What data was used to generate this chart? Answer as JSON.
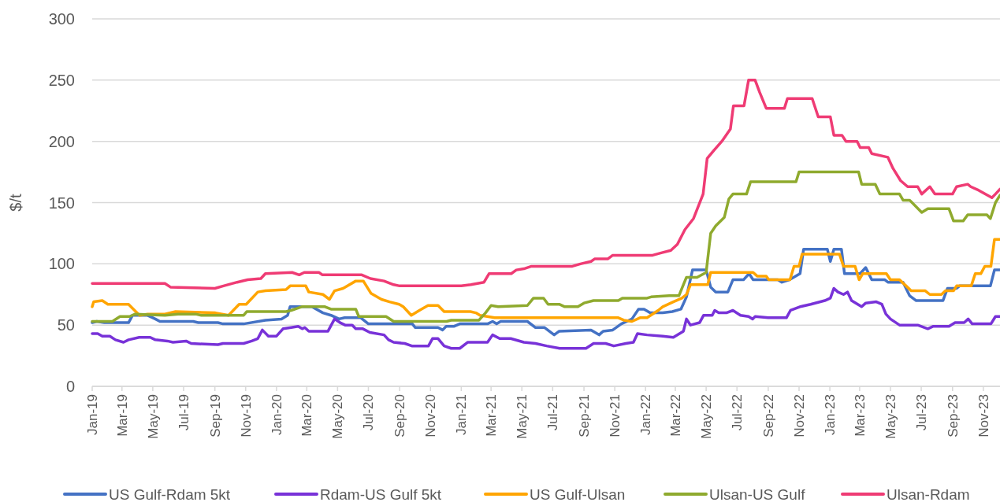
{
  "chart_data": {
    "type": "line",
    "ylabel": "$/t",
    "ylim": [
      0,
      300
    ],
    "yticks": [
      0,
      50,
      100,
      150,
      200,
      250,
      300
    ],
    "xlim": [
      "2019-01-01",
      "2023-12-04"
    ],
    "xticks": [
      {
        "value": "2019-01",
        "label": "Jan-19"
      },
      {
        "value": "2019-03",
        "label": "Mar-19"
      },
      {
        "value": "2019-05",
        "label": "May-19"
      },
      {
        "value": "2019-07",
        "label": "Jul-19"
      },
      {
        "value": "2019-09",
        "label": "Sep-19"
      },
      {
        "value": "2019-11",
        "label": "Nov-19"
      },
      {
        "value": "2020-01",
        "label": "Jan-20"
      },
      {
        "value": "2020-03",
        "label": "Mar-20"
      },
      {
        "value": "2020-05",
        "label": "May-20"
      },
      {
        "value": "2020-07",
        "label": "Jul-20"
      },
      {
        "value": "2020-09",
        "label": "Sep-20"
      },
      {
        "value": "2020-11",
        "label": "Nov-20"
      },
      {
        "value": "2021-01",
        "label": "Jan-21"
      },
      {
        "value": "2021-03",
        "label": "Mar-21"
      },
      {
        "value": "2021-05",
        "label": "May-21"
      },
      {
        "value": "2021-07",
        "label": "Jul-21"
      },
      {
        "value": "2021-09",
        "label": "Sep-21"
      },
      {
        "value": "2021-11",
        "label": "Nov-21"
      },
      {
        "value": "2022-01",
        "label": "Jan-22"
      },
      {
        "value": "2022-03",
        "label": "Mar-22"
      },
      {
        "value": "2022-05",
        "label": "May-22"
      },
      {
        "value": "2022-07",
        "label": "Jul-22"
      },
      {
        "value": "2022-09",
        "label": "Sep-22"
      },
      {
        "value": "2022-11",
        "label": "Nov-22"
      },
      {
        "value": "2023-01",
        "label": "Jan-23"
      },
      {
        "value": "2023-03",
        "label": "Mar-23"
      },
      {
        "value": "2023-05",
        "label": "May-23"
      },
      {
        "value": "2023-07",
        "label": "Jul-23"
      },
      {
        "value": "2023-09",
        "label": "Sep-23"
      },
      {
        "value": "2023-11",
        "label": "Nov-23"
      }
    ],
    "grid": "y",
    "legend": "bottom",
    "marker": "none",
    "line_style": "solid",
    "series": [
      {
        "name": "US Gulf-Rdam 5kt",
        "color": "#4472c4",
        "x": [
          "2019-01-01",
          "2019-01-10",
          "2019-01-25",
          "2019-03-14",
          "2019-03-22",
          "2019-04-20",
          "2019-05-06",
          "2019-05-15",
          "2019-07-20",
          "2019-07-30",
          "2019-09-07",
          "2019-09-17",
          "2019-10-28",
          "2019-12-10",
          "2020-01-11",
          "2020-01-23",
          "2020-01-28",
          "2020-03-11",
          "2020-04-02",
          "2020-04-18",
          "2020-05-04",
          "2020-05-15",
          "2020-06-16",
          "2020-07-01",
          "2020-09-26",
          "2020-10-02",
          "2020-11-16",
          "2020-11-25",
          "2020-12-02",
          "2020-12-18",
          "2020-12-29",
          "2021-02-22",
          "2021-03-04",
          "2021-03-12",
          "2021-03-20",
          "2021-05-12",
          "2021-05-28",
          "2021-06-15",
          "2021-07-04",
          "2021-07-14",
          "2021-09-15",
          "2021-10-01",
          "2021-10-09",
          "2021-10-28",
          "2021-11-14",
          "2021-12-05",
          "2021-12-18",
          "2021-12-29",
          "2022-01-10",
          "2022-02-04",
          "2022-02-23",
          "2022-03-12",
          "2022-03-23",
          "2022-04-04",
          "2022-05-01",
          "2022-05-10",
          "2022-05-20",
          "2022-06-13",
          "2022-06-23",
          "2022-07-14",
          "2022-07-25",
          "2022-08-02",
          "2022-09-20",
          "2022-09-28",
          "2022-10-13",
          "2022-11-03",
          "2022-11-10",
          "2022-12-27",
          "2023-01-02",
          "2023-01-09",
          "2023-01-24",
          "2023-01-30",
          "2023-03-02",
          "2023-03-13",
          "2023-03-19",
          "2023-03-25",
          "2023-04-20",
          "2023-04-26",
          "2023-05-26",
          "2023-06-08",
          "2023-06-21",
          "2023-08-13",
          "2023-08-22",
          "2023-09-09",
          "2023-09-15",
          "2023-11-15",
          "2023-11-23",
          "2023-12-04"
        ],
        "values": [
          52,
          53,
          52,
          52,
          58,
          58,
          55,
          53,
          53,
          52,
          52,
          51,
          51,
          54,
          55,
          58,
          65,
          65,
          60,
          58,
          55,
          56,
          56,
          51,
          51,
          48,
          48,
          46,
          49,
          49,
          51,
          51,
          53,
          51,
          53,
          53,
          48,
          48,
          42,
          45,
          46,
          42,
          45,
          46,
          51,
          55,
          63,
          63,
          60,
          60,
          61,
          63,
          73,
          95,
          95,
          81,
          77,
          77,
          87,
          87,
          92,
          87,
          87,
          85,
          87,
          92,
          112,
          112,
          102,
          112,
          112,
          92,
          92,
          97,
          92,
          87,
          87,
          85,
          85,
          74,
          70,
          70,
          80,
          80,
          82,
          82,
          95,
          95
        ]
      },
      {
        "name": "Rdam-US Gulf 5kt",
        "color": "#7832d8",
        "x": [
          "2019-01-01",
          "2019-01-12",
          "2019-01-21",
          "2019-02-05",
          "2019-02-16",
          "2019-03-04",
          "2019-03-14",
          "2019-04-04",
          "2019-04-26",
          "2019-05-06",
          "2019-05-30",
          "2019-06-10",
          "2019-07-06",
          "2019-07-16",
          "2019-09-07",
          "2019-09-17",
          "2019-10-28",
          "2019-11-13",
          "2019-11-25",
          "2019-12-04",
          "2019-12-16",
          "2020-01-01",
          "2020-01-14",
          "2020-01-30",
          "2020-02-13",
          "2020-02-21",
          "2020-02-26",
          "2020-03-05",
          "2020-04-12",
          "2020-04-25",
          "2020-05-06",
          "2020-05-16",
          "2020-05-30",
          "2020-06-06",
          "2020-06-20",
          "2020-07-04",
          "2020-08-01",
          "2020-08-10",
          "2020-08-20",
          "2020-09-11",
          "2020-09-25",
          "2020-10-28",
          "2020-11-05",
          "2020-11-16",
          "2020-11-28",
          "2020-12-12",
          "2020-12-29",
          "2021-01-14",
          "2021-02-22",
          "2021-03-04",
          "2021-03-18",
          "2021-04-09",
          "2021-05-05",
          "2021-05-28",
          "2021-06-19",
          "2021-07-15",
          "2021-09-05",
          "2021-09-20",
          "2021-10-14",
          "2021-10-30",
          "2021-11-23",
          "2021-12-08",
          "2021-12-16",
          "2022-01-04",
          "2022-02-04",
          "2022-02-25",
          "2022-03-17",
          "2022-03-23",
          "2022-03-31",
          "2022-04-18",
          "2022-04-26",
          "2022-05-13",
          "2022-05-18",
          "2022-05-26",
          "2022-06-10",
          "2022-06-23",
          "2022-07-08",
          "2022-07-24",
          "2022-08-01",
          "2022-08-06",
          "2022-09-01",
          "2022-10-07",
          "2022-10-15",
          "2022-11-03",
          "2022-11-24",
          "2022-12-22",
          "2023-01-02",
          "2023-01-09",
          "2023-01-17",
          "2023-01-28",
          "2023-02-05",
          "2023-02-13",
          "2023-03-05",
          "2023-03-13",
          "2023-04-03",
          "2023-04-14",
          "2023-04-22",
          "2023-05-01",
          "2023-05-19",
          "2023-06-24",
          "2023-07-14",
          "2023-07-25",
          "2023-08-25",
          "2023-09-06",
          "2023-09-24",
          "2023-10-02",
          "2023-10-10",
          "2023-11-16",
          "2023-11-25",
          "2023-12-04"
        ],
        "values": [
          43,
          43,
          41,
          41,
          38,
          36,
          38,
          40,
          40,
          38,
          37,
          36,
          37,
          35,
          34,
          35,
          35,
          37,
          39,
          46,
          41,
          41,
          47,
          48,
          49,
          47,
          48,
          45,
          45,
          55,
          52,
          50,
          50,
          47,
          47,
          44,
          42,
          38,
          36,
          35,
          33,
          33,
          39,
          39,
          33,
          31,
          31,
          36,
          36,
          42,
          39,
          39,
          36,
          35,
          33,
          31,
          31,
          35,
          35,
          33,
          35,
          36,
          43,
          42,
          41,
          40,
          45,
          55,
          50,
          52,
          58,
          58,
          62,
          60,
          60,
          62,
          58,
          57,
          55,
          57,
          56,
          56,
          62,
          65,
          67,
          70,
          72,
          80,
          77,
          75,
          77,
          70,
          65,
          68,
          69,
          67,
          59,
          55,
          50,
          50,
          47,
          49,
          49,
          52,
          52,
          55,
          51,
          51,
          57,
          57
        ]
      },
      {
        "name": "US Gulf-Ulsan",
        "color": "#ffa500",
        "x": [
          "2019-01-01",
          "2019-01-04",
          "2019-01-21",
          "2019-02-01",
          "2019-02-12",
          "2019-03-14",
          "2019-03-26",
          "2019-04-05",
          "2019-04-21",
          "2019-05-25",
          "2019-06-15",
          "2019-09-02",
          "2019-09-28",
          "2019-10-19",
          "2019-11-02",
          "2019-11-25",
          "2019-12-10",
          "2020-01-20",
          "2020-01-28",
          "2020-02-28",
          "2020-03-05",
          "2020-04-02",
          "2020-04-15",
          "2020-04-25",
          "2020-05-12",
          "2020-06-06",
          "2020-06-21",
          "2020-07-06",
          "2020-07-27",
          "2020-08-12",
          "2020-08-31",
          "2020-09-08",
          "2020-09-24",
          "2020-10-10",
          "2020-10-27",
          "2020-11-16",
          "2020-11-28",
          "2021-01-19",
          "2021-01-30",
          "2021-02-07",
          "2021-03-08",
          "2021-11-08",
          "2021-11-19",
          "2021-12-05",
          "2021-12-21",
          "2022-01-04",
          "2022-01-26",
          "2022-02-04",
          "2022-02-25",
          "2022-03-14",
          "2022-03-23",
          "2022-03-31",
          "2022-05-04",
          "2022-05-10",
          "2022-08-02",
          "2022-08-10",
          "2022-08-28",
          "2022-09-02",
          "2022-10-14",
          "2022-10-22",
          "2022-11-01",
          "2022-11-07",
          "2023-01-20",
          "2023-01-28",
          "2023-02-20",
          "2023-02-28",
          "2023-03-07",
          "2023-04-23",
          "2023-05-01",
          "2023-05-19",
          "2023-06-01",
          "2023-06-11",
          "2023-07-09",
          "2023-07-18",
          "2023-08-10",
          "2023-08-18",
          "2023-09-03",
          "2023-09-09",
          "2023-10-08",
          "2023-10-16",
          "2023-10-27",
          "2023-11-04",
          "2023-11-16",
          "2023-11-23",
          "2023-12-04"
        ],
        "values": [
          65,
          69,
          70,
          67,
          67,
          67,
          62,
          58,
          59,
          59,
          61,
          60,
          58,
          67,
          67,
          77,
          78,
          79,
          82,
          82,
          77,
          75,
          71,
          78,
          80,
          86,
          86,
          76,
          71,
          69,
          67,
          65,
          58,
          62,
          66,
          66,
          61,
          61,
          60,
          58,
          56,
          56,
          54,
          53,
          56,
          56,
          62,
          65,
          69,
          72,
          75,
          83,
          83,
          93,
          93,
          90,
          90,
          87,
          87,
          98,
          98,
          108,
          108,
          98,
          98,
          87,
          92,
          92,
          87,
          87,
          82,
          78,
          78,
          75,
          75,
          78,
          78,
          82,
          82,
          92,
          92,
          98,
          98,
          120,
          120
        ]
      },
      {
        "name": "Ulsan-US Gulf",
        "color": "#8faa2e",
        "x": [
          "2019-01-01",
          "2019-02-10",
          "2019-02-25",
          "2019-03-16",
          "2019-03-27",
          "2019-05-25",
          "2019-06-20",
          "2019-07-25",
          "2019-08-05",
          "2019-10-28",
          "2019-11-03",
          "2020-01-20",
          "2020-01-30",
          "2020-02-20",
          "2020-04-06",
          "2020-04-18",
          "2020-06-06",
          "2020-06-12",
          "2020-08-05",
          "2020-08-20",
          "2020-12-03",
          "2020-12-12",
          "2021-02-05",
          "2021-02-18",
          "2021-03-01",
          "2021-03-15",
          "2021-05-12",
          "2021-05-24",
          "2021-06-13",
          "2021-06-22",
          "2021-07-14",
          "2021-07-25",
          "2021-08-20",
          "2021-09-01",
          "2021-09-20",
          "2021-11-08",
          "2021-11-16",
          "2022-01-04",
          "2022-01-12",
          "2022-02-17",
          "2022-03-08",
          "2022-03-23",
          "2022-04-13",
          "2022-05-01",
          "2022-05-10",
          "2022-05-20",
          "2022-06-06",
          "2022-06-15",
          "2022-06-23",
          "2022-07-20",
          "2022-07-28",
          "2022-10-26",
          "2022-11-01",
          "2023-02-27",
          "2023-03-05",
          "2023-04-01",
          "2023-04-10",
          "2023-05-19",
          "2023-05-26",
          "2023-06-08",
          "2023-07-02",
          "2023-07-14",
          "2023-08-25",
          "2023-09-03",
          "2023-09-22",
          "2023-10-01",
          "2023-11-08",
          "2023-11-15",
          "2023-11-25",
          "2023-12-04"
        ],
        "values": [
          53,
          53,
          57,
          57,
          59,
          58,
          59,
          59,
          58,
          58,
          61,
          61,
          62,
          65,
          65,
          63,
          63,
          57,
          57,
          53,
          53,
          54,
          54,
          60,
          66,
          65,
          66,
          72,
          72,
          67,
          67,
          65,
          65,
          68,
          70,
          70,
          72,
          72,
          73,
          74,
          74,
          89,
          89,
          93,
          125,
          131,
          138,
          153,
          157,
          157,
          167,
          167,
          175,
          175,
          165,
          165,
          157,
          157,
          152,
          152,
          142,
          145,
          145,
          135,
          135,
          140,
          140,
          137,
          150,
          156
        ]
      },
      {
        "name": "Ulsan-Rdam",
        "color": "#ef3b74",
        "x": [
          "2019-01-01",
          "2019-05-25",
          "2019-06-05",
          "2019-09-01",
          "2019-09-18",
          "2019-10-15",
          "2019-11-05",
          "2019-12-01",
          "2019-12-10",
          "2020-02-01",
          "2020-02-15",
          "2020-02-25",
          "2020-03-25",
          "2020-04-01",
          "2020-06-18",
          "2020-07-05",
          "2020-08-01",
          "2020-08-20",
          "2020-09-01",
          "2021-01-01",
          "2021-01-20",
          "2021-02-15",
          "2021-02-25",
          "2021-04-10",
          "2021-04-20",
          "2021-05-05",
          "2021-05-20",
          "2021-08-09",
          "2021-08-25",
          "2021-09-15",
          "2021-09-22",
          "2021-10-18",
          "2021-10-28",
          "2022-01-15",
          "2022-02-01",
          "2022-02-20",
          "2022-03-05",
          "2022-03-20",
          "2022-04-06",
          "2022-04-25",
          "2022-05-03",
          "2022-05-17",
          "2022-06-01",
          "2022-06-18",
          "2022-06-24",
          "2022-07-15",
          "2022-07-24",
          "2022-08-06",
          "2022-08-15",
          "2022-08-28",
          "2022-10-03",
          "2022-10-09",
          "2022-11-27",
          "2022-12-09",
          "2023-01-02",
          "2023-01-09",
          "2023-01-25",
          "2023-02-02",
          "2023-02-24",
          "2023-03-02",
          "2023-03-19",
          "2023-03-25",
          "2023-04-26",
          "2023-05-06",
          "2023-05-21",
          "2023-06-04",
          "2023-06-24",
          "2023-07-02",
          "2023-07-18",
          "2023-07-28",
          "2023-09-01",
          "2023-09-09",
          "2023-10-01",
          "2023-10-07",
          "2023-10-23",
          "2023-11-18",
          "2023-11-25",
          "2023-12-04"
        ],
        "values": [
          84,
          84,
          81,
          80,
          82,
          85,
          87,
          88,
          92,
          93,
          91,
          93,
          93,
          91,
          91,
          88,
          86,
          83,
          82,
          82,
          83,
          85,
          92,
          92,
          95,
          96,
          98,
          98,
          100,
          102,
          104,
          104,
          107,
          107,
          109,
          111,
          116,
          128,
          137,
          157,
          186,
          193,
          200,
          210,
          229,
          229,
          250,
          250,
          240,
          227,
          227,
          235,
          235,
          220,
          220,
          205,
          205,
          200,
          200,
          195,
          195,
          190,
          187,
          178,
          168,
          163,
          163,
          157,
          163,
          157,
          157,
          163,
          165,
          163,
          160,
          154,
          157,
          161
        ]
      }
    ]
  }
}
